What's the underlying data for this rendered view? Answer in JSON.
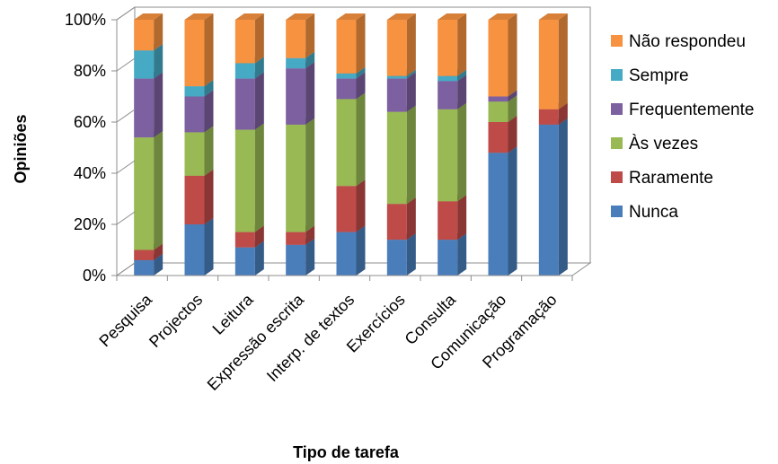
{
  "chart_data": {
    "type": "bar",
    "stacked": true,
    "percent": true,
    "three_d": true,
    "xlabel": "Tipo de tarefa",
    "ylabel": "Opiniões",
    "ylim": [
      0,
      100
    ],
    "yticks": [
      "0%",
      "20%",
      "40%",
      "60%",
      "80%",
      "100%"
    ],
    "categories": [
      "Pesquisa",
      "Projectos",
      "Leitura",
      "Expressão escrita",
      "Interp. de textos",
      "Exercícios",
      "Consulta",
      "Comunicação",
      "Programação"
    ],
    "series": [
      {
        "name": "Nunca",
        "color": "#4a7ebb",
        "values": [
          6,
          20,
          11,
          12,
          17,
          14,
          14,
          48,
          59
        ]
      },
      {
        "name": "Raramente",
        "color": "#be4b48",
        "values": [
          4,
          19,
          6,
          5,
          18,
          14,
          15,
          12,
          6
        ]
      },
      {
        "name": "Às vezes",
        "color": "#98b954",
        "values": [
          44,
          17,
          40,
          42,
          34,
          36,
          36,
          8,
          0
        ]
      },
      {
        "name": "Frequentemente",
        "color": "#7d60a0",
        "values": [
          23,
          14,
          20,
          22,
          8,
          13,
          11,
          2,
          0
        ]
      },
      {
        "name": "Sempre",
        "color": "#46aac5",
        "values": [
          11,
          4,
          6,
          4,
          2,
          1,
          2,
          0,
          0
        ]
      },
      {
        "name": "Não respondeu",
        "color": "#f69240",
        "values": [
          12,
          26,
          17,
          15,
          21,
          22,
          22,
          30,
          35
        ]
      }
    ],
    "legend_position": "right",
    "grid": false
  }
}
